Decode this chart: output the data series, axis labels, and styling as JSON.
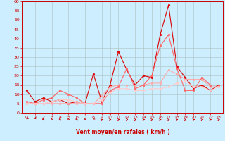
{
  "x": [
    0,
    1,
    2,
    3,
    4,
    5,
    6,
    7,
    8,
    9,
    10,
    11,
    12,
    13,
    14,
    15,
    16,
    17,
    18,
    19,
    20,
    21,
    22,
    23
  ],
  "series": [
    {
      "name": "line1_dark",
      "color": "#dd0000",
      "linewidth": 0.8,
      "markersize": 2.0,
      "y": [
        12,
        6,
        8,
        6,
        7,
        5,
        6,
        5,
        21,
        6,
        15,
        33,
        23,
        15,
        20,
        19,
        42,
        58,
        25,
        19,
        13,
        15,
        12,
        15
      ]
    },
    {
      "name": "line2_light",
      "color": "#ffaaaa",
      "linewidth": 0.8,
      "markersize": 2.0,
      "y": [
        5,
        5,
        5,
        5,
        5,
        5,
        5,
        5,
        5,
        9,
        14,
        15,
        15,
        15,
        15,
        16,
        16,
        23,
        21,
        18,
        18,
        18,
        14,
        14
      ]
    },
    {
      "name": "line3_med",
      "color": "#ff6666",
      "linewidth": 0.8,
      "markersize": 2.0,
      "y": [
        6,
        5,
        7,
        8,
        12,
        10,
        8,
        5,
        5,
        5,
        12,
        14,
        24,
        13,
        15,
        20,
        36,
        42,
        24,
        12,
        12,
        19,
        15,
        15
      ]
    },
    {
      "name": "line4_lightest",
      "color": "#ffcccc",
      "linewidth": 0.8,
      "markersize": 2.0,
      "y": [
        5,
        5,
        5,
        6,
        7,
        7,
        6,
        5,
        5,
        7,
        11,
        13,
        13,
        12,
        12,
        13,
        13,
        14,
        16,
        17,
        14,
        14,
        12,
        14
      ]
    }
  ],
  "xlabel": "Vent moyen/en rafales ( km/h )",
  "ylim": [
    0,
    60
  ],
  "xlim": [
    -0.5,
    23.5
  ],
  "yticks": [
    0,
    5,
    10,
    15,
    20,
    25,
    30,
    35,
    40,
    45,
    50,
    55,
    60
  ],
  "xticks": [
    0,
    1,
    2,
    3,
    4,
    5,
    6,
    7,
    8,
    9,
    10,
    11,
    12,
    13,
    14,
    15,
    16,
    17,
    18,
    19,
    20,
    21,
    22,
    23
  ],
  "bg_color": "#cceeff",
  "grid_color": "#aabbbb",
  "xlabel_color": "#cc0000",
  "tick_color": "#cc0000",
  "spine_color": "#cc0000",
  "arrow_color": "#cc0000",
  "arrow_angles": [
    200,
    190,
    240,
    220,
    240,
    220,
    240,
    230,
    210,
    45,
    50,
    60,
    70,
    60,
    60,
    55,
    50,
    50,
    55,
    55,
    55,
    55,
    55,
    55
  ]
}
